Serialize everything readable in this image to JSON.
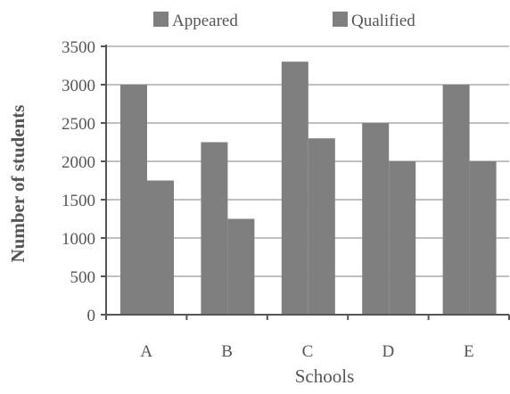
{
  "chart_data": {
    "type": "bar",
    "categories": [
      "A",
      "B",
      "C",
      "D",
      "E"
    ],
    "series": [
      {
        "name": "Appeared",
        "values": [
          3000,
          2250,
          3300,
          2500,
          3000
        ]
      },
      {
        "name": "Qualified",
        "values": [
          1750,
          1250,
          2300,
          2000,
          2000
        ]
      }
    ],
    "xlabel": "Schools",
    "ylabel": "Number of students",
    "ylim": [
      0,
      3500
    ],
    "yticks": [
      0,
      500,
      1000,
      1500,
      2000,
      2500,
      3000,
      3500
    ],
    "grid": true,
    "legend_position": "top",
    "colors": {
      "bar": "#7f7f7f",
      "grid": "#808080",
      "axis": "#555555",
      "text": "#555555"
    }
  }
}
